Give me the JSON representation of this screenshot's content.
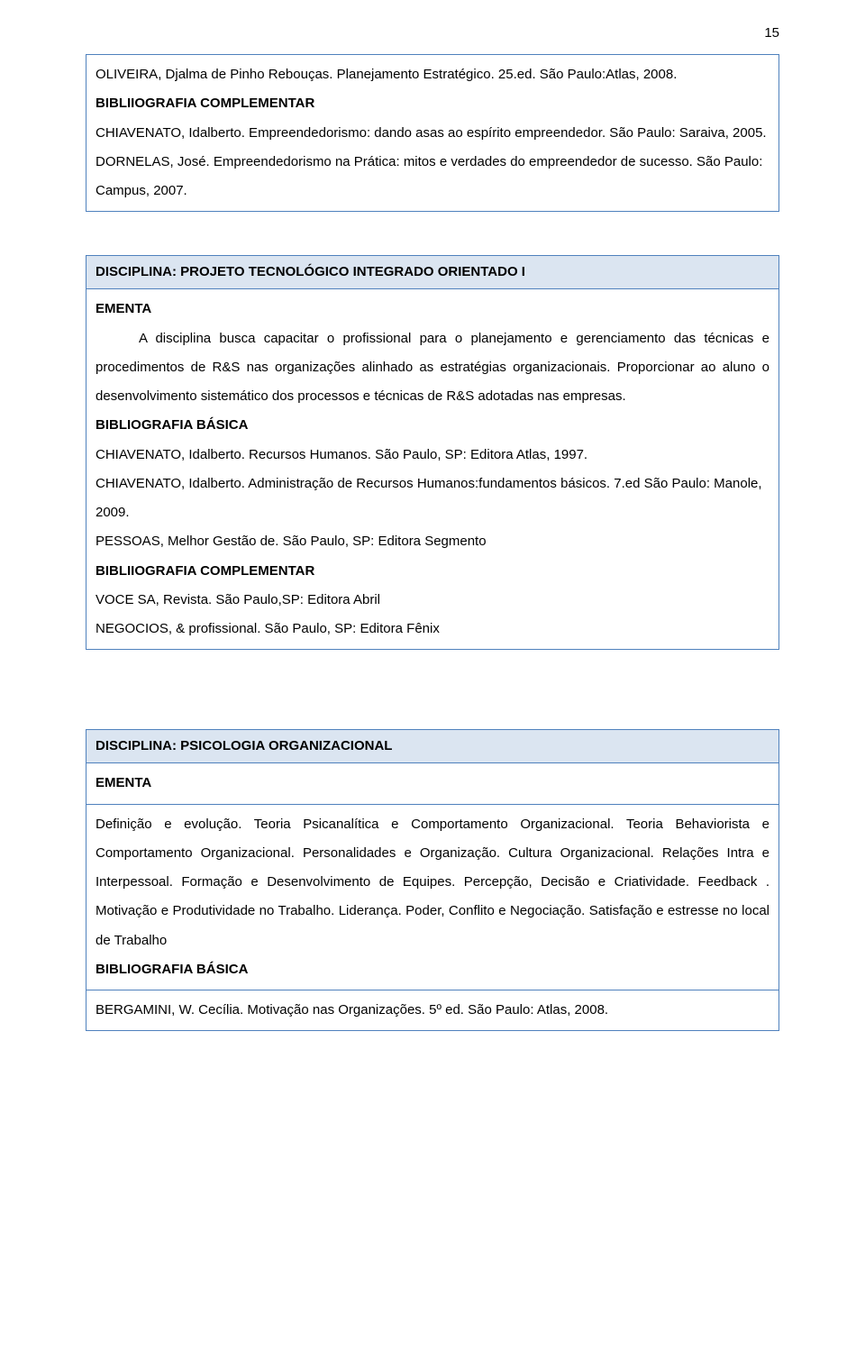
{
  "page_number": "15",
  "colors": {
    "border": "#4f81bd",
    "header_bg": "#dbe5f1",
    "text": "#000000",
    "page_bg": "#ffffff"
  },
  "typography": {
    "base_fontsize_pt": 11,
    "line_height": 2.15,
    "font_family": "Arial"
  },
  "top_block": {
    "para1": "OLIVEIRA, Djalma de Pinho Rebouças. Planejamento Estratégico. 25.ed. São Paulo:Atlas, 2008.",
    "complementar_label": "BIBLIIOGRAFIA COMPLEMENTAR",
    "para2": "CHIAVENATO, Idalberto. Empreendedorismo: dando asas ao espírito empreendedor. São Paulo: Saraiva, 2005.",
    "para3": "DORNELAS, José. Empreendedorismo na Prática: mitos e verdades do empreendedor de sucesso. São Paulo: Campus, 2007."
  },
  "section1": {
    "title": "DISCIPLINA: PROJETO TECNOLÓGICO INTEGRADO ORIENTADO I",
    "ementa_label": "EMENTA",
    "ementa_text": "A disciplina busca capacitar o profissional para o planejamento e gerenciamento das técnicas e procedimentos de R&S nas organizações alinhado as estratégias organizacionais. Proporcionar ao aluno o desenvolvimento sistemático dos processos e técnicas de R&S adotadas nas empresas.",
    "bib_basica_label": "BIBLIOGRAFIA BÁSICA",
    "bib_basica_1": "CHIAVENATO, Idalberto. Recursos Humanos. São Paulo, SP: Editora Atlas, 1997.",
    "bib_basica_2": "CHIAVENATO, Idalberto. Administração de Recursos Humanos:fundamentos básicos. 7.ed São Paulo: Manole, 2009.",
    "bib_basica_3": "PESSOAS, Melhor Gestão de. São Paulo, SP: Editora Segmento",
    "bib_compl_label": "BIBLIIOGRAFIA COMPLEMENTAR",
    "bib_compl_1": "VOCE SA, Revista. São Paulo,SP: Editora Abril",
    "bib_compl_2": "NEGOCIOS, & profissional. São Paulo, SP: Editora Fênix"
  },
  "section2": {
    "title": "DISCIPLINA: PSICOLOGIA ORGANIZACIONAL",
    "ementa_label": "EMENTA",
    "ementa_text": "Definição e evolução. Teoria Psicanalítica e Comportamento Organizacional. Teoria Behaviorista e Comportamento Organizacional. Personalidades e Organização. Cultura Organizacional. Relações Intra e Interpessoal. Formação e Desenvolvimento de Equipes. Percepção, Decisão e Criatividade. Feedback . Motivação e Produtividade no Trabalho. Liderança. Poder, Conflito e Negociação. Satisfação e estresse no local de Trabalho",
    "bib_basica_label": "BIBLIOGRAFIA BÁSICA",
    "bib_basica_1": "BERGAMINI, W. Cecília. Motivação nas Organizações. 5º ed. São Paulo: Atlas, 2008."
  }
}
